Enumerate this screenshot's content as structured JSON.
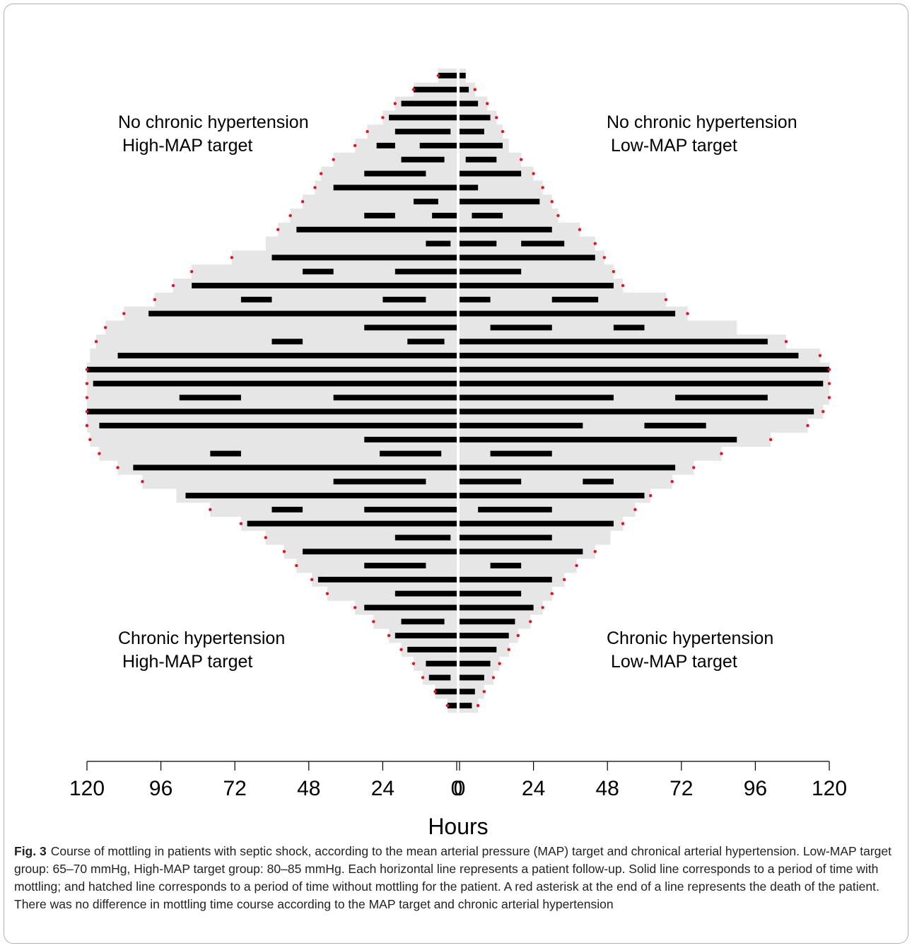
{
  "chart_data": {
    "type": "butterfly-swimmer",
    "xlabel": "Hours",
    "follow_up_color": "#e6e6e6",
    "mottling_color": "#000000",
    "death_color": "#e8141c",
    "annotations": [
      {
        "side": "left",
        "half": "top",
        "lines": [
          "No chronic hypertension",
          "High-MAP target"
        ]
      },
      {
        "side": "right",
        "half": "top",
        "lines": [
          "No chronic hypertension",
          "Low-MAP target"
        ]
      },
      {
        "side": "left",
        "half": "bottom",
        "lines": [
          "Chronic hypertension",
          "High-MAP target"
        ]
      },
      {
        "side": "right",
        "half": "bottom",
        "lines": [
          "Chronic hypertension",
          "Low-MAP target"
        ]
      }
    ],
    "series": [
      {
        "side": "left",
        "xlim": [
          0,
          120
        ],
        "xticks": [
          120,
          96,
          72,
          48,
          24,
          0
        ],
        "hours": [
          6,
          14,
          20,
          24,
          29,
          33,
          40,
          44,
          46,
          50,
          54,
          58,
          62,
          73,
          86,
          92,
          98,
          108,
          114,
          117,
          119,
          120,
          120,
          120,
          120,
          120,
          119,
          116,
          110,
          102,
          91,
          80,
          70,
          62,
          56,
          52,
          47,
          42,
          33,
          27,
          22,
          18,
          14,
          11,
          7,
          3
        ],
        "mottling": [
          [
            [
              0,
              6
            ]
          ],
          [
            [
              0,
              14
            ]
          ],
          [
            [
              0,
              18
            ]
          ],
          [
            [
              0,
              22
            ]
          ],
          [
            [
              2,
              20
            ]
          ],
          [
            [
              0,
              12
            ],
            [
              20,
              26
            ]
          ],
          [
            [
              4,
              18
            ]
          ],
          [
            [
              10,
              30
            ]
          ],
          [
            [
              0,
              40
            ]
          ],
          [
            [
              6,
              14
            ]
          ],
          [
            [
              0,
              8
            ],
            [
              20,
              30
            ]
          ],
          [
            [
              0,
              52
            ]
          ],
          [
            [
              2,
              10
            ]
          ],
          [
            [
              0,
              60
            ]
          ],
          [
            [
              0,
              20
            ],
            [
              40,
              50
            ]
          ],
          [
            [
              0,
              86
            ]
          ],
          [
            [
              10,
              24
            ],
            [
              60,
              70
            ]
          ],
          [
            [
              0,
              100
            ]
          ],
          [
            [
              0,
              30
            ]
          ],
          [
            [
              4,
              16
            ],
            [
              50,
              60
            ]
          ],
          [
            [
              0,
              110
            ]
          ],
          [
            [
              0,
              120
            ]
          ],
          [
            [
              0,
              118
            ]
          ],
          [
            [
              0,
              40
            ],
            [
              70,
              90
            ]
          ],
          [
            [
              0,
              120
            ]
          ],
          [
            [
              0,
              116
            ]
          ],
          [
            [
              0,
              30
            ]
          ],
          [
            [
              5,
              25
            ],
            [
              70,
              80
            ]
          ],
          [
            [
              0,
              105
            ]
          ],
          [
            [
              10,
              40
            ]
          ],
          [
            [
              0,
              88
            ]
          ],
          [
            [
              0,
              30
            ],
            [
              50,
              60
            ]
          ],
          [
            [
              0,
              68
            ]
          ],
          [
            [
              2,
              20
            ]
          ],
          [
            [
              0,
              50
            ]
          ],
          [
            [
              10,
              30
            ]
          ],
          [
            [
              0,
              45
            ]
          ],
          [
            [
              0,
              20
            ]
          ],
          [
            [
              0,
              30
            ]
          ],
          [
            [
              4,
              18
            ]
          ],
          [
            [
              0,
              20
            ]
          ],
          [
            [
              0,
              16
            ]
          ],
          [
            [
              0,
              10
            ]
          ],
          [
            [
              2,
              9
            ]
          ],
          [
            [
              0,
              7
            ]
          ],
          [
            [
              0,
              3
            ]
          ]
        ],
        "death": [
          true,
          true,
          true,
          true,
          true,
          true,
          true,
          true,
          true,
          true,
          true,
          true,
          false,
          true,
          true,
          true,
          true,
          true,
          true,
          true,
          false,
          true,
          true,
          true,
          true,
          true,
          true,
          true,
          true,
          true,
          false,
          true,
          true,
          true,
          true,
          true,
          true,
          true,
          true,
          true,
          true,
          true,
          true,
          true,
          true,
          true
        ]
      },
      {
        "side": "right",
        "xlim": [
          0,
          120
        ],
        "xticks": [
          0,
          24,
          48,
          72,
          96,
          120
        ],
        "hours": [
          2,
          5,
          9,
          12,
          14,
          16,
          20,
          24,
          27,
          30,
          32,
          39,
          44,
          47,
          50,
          53,
          67,
          74,
          90,
          106,
          117,
          120,
          120,
          120,
          118,
          113,
          101,
          85,
          76,
          69,
          62,
          57,
          53,
          49,
          44,
          38,
          34,
          30,
          27,
          23,
          19,
          16,
          13,
          11,
          8,
          6
        ],
        "mottling": [
          [
            [
              0,
              2
            ]
          ],
          [
            [
              0,
              3
            ]
          ],
          [
            [
              0,
              6
            ]
          ],
          [
            [
              0,
              10
            ]
          ],
          [
            [
              0,
              8
            ]
          ],
          [
            [
              0,
              14
            ]
          ],
          [
            [
              2,
              12
            ]
          ],
          [
            [
              0,
              20
            ]
          ],
          [
            [
              0,
              6
            ]
          ],
          [
            [
              0,
              26
            ]
          ],
          [
            [
              4,
              14
            ]
          ],
          [
            [
              0,
              30
            ]
          ],
          [
            [
              0,
              12
            ],
            [
              20,
              34
            ]
          ],
          [
            [
              0,
              44
            ]
          ],
          [
            [
              0,
              20
            ]
          ],
          [
            [
              0,
              50
            ]
          ],
          [
            [
              0,
              10
            ],
            [
              30,
              45
            ]
          ],
          [
            [
              0,
              70
            ]
          ],
          [
            [
              10,
              30
            ],
            [
              50,
              60
            ]
          ],
          [
            [
              0,
              100
            ]
          ],
          [
            [
              0,
              110
            ]
          ],
          [
            [
              0,
              120
            ]
          ],
          [
            [
              0,
              118
            ]
          ],
          [
            [
              0,
              50
            ],
            [
              70,
              100
            ]
          ],
          [
            [
              0,
              115
            ]
          ],
          [
            [
              0,
              40
            ],
            [
              60,
              80
            ]
          ],
          [
            [
              0,
              90
            ]
          ],
          [
            [
              10,
              30
            ]
          ],
          [
            [
              0,
              70
            ]
          ],
          [
            [
              0,
              20
            ],
            [
              40,
              50
            ]
          ],
          [
            [
              0,
              60
            ]
          ],
          [
            [
              6,
              30
            ]
          ],
          [
            [
              0,
              50
            ]
          ],
          [
            [
              0,
              30
            ]
          ],
          [
            [
              0,
              40
            ]
          ],
          [
            [
              10,
              20
            ]
          ],
          [
            [
              0,
              30
            ]
          ],
          [
            [
              0,
              20
            ]
          ],
          [
            [
              0,
              24
            ]
          ],
          [
            [
              0,
              18
            ]
          ],
          [
            [
              0,
              16
            ]
          ],
          [
            [
              0,
              12
            ]
          ],
          [
            [
              0,
              10
            ]
          ],
          [
            [
              0,
              8
            ]
          ],
          [
            [
              0,
              5
            ]
          ],
          [
            [
              0,
              4
            ]
          ]
        ],
        "death": [
          false,
          true,
          true,
          true,
          true,
          false,
          true,
          true,
          true,
          true,
          true,
          true,
          true,
          true,
          true,
          true,
          true,
          true,
          false,
          true,
          true,
          true,
          true,
          true,
          true,
          true,
          true,
          true,
          true,
          true,
          true,
          true,
          true,
          false,
          true,
          true,
          true,
          true,
          true,
          true,
          true,
          true,
          true,
          true,
          true,
          true
        ]
      }
    ]
  },
  "caption": {
    "label": "Fig. 3",
    "text": "Course of mottling in patients with septic shock, according to the mean arterial pressure (MAP) target and chronical arterial hypertension. Low-MAP target group: 65–70 mmHg, High-MAP target group: 80–85 mmHg. Each horizontal line represents a patient follow-up. Solid line corresponds to a period of time with mottling; and hatched line corresponds to a period of time without mottling for the patient. A red asterisk at the end of a line represents the death of the patient. There was no difference in mottling time course according to the MAP target and chronic arterial hypertension"
  }
}
